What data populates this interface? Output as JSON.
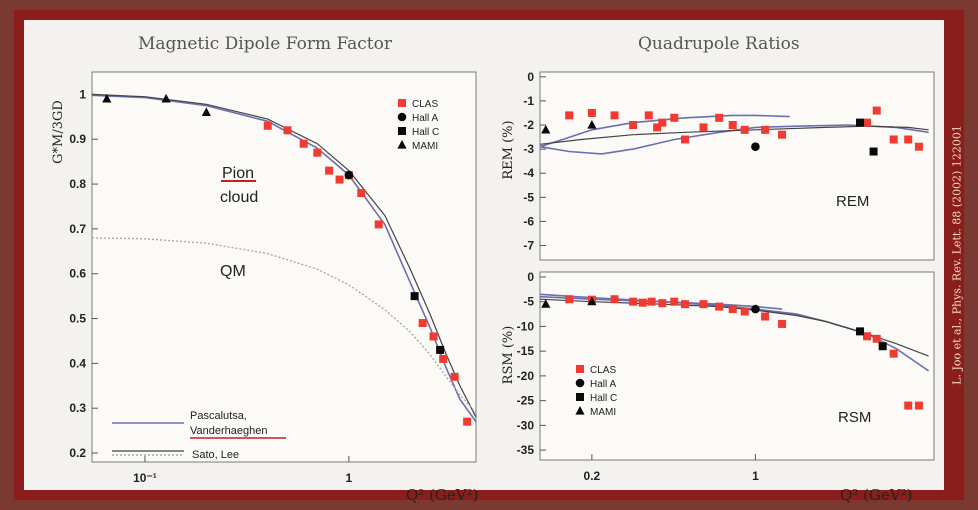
{
  "credit": "L. Joo et al., Phys. Rev. Lett. 88 (2002) 122001",
  "colors": {
    "clas": "#f03a32",
    "pv": "#6a6fb0",
    "sato": "#444444",
    "qm": "#a9a9a9",
    "red_line": "#c42020"
  },
  "chart_data": [
    {
      "type": "scatter",
      "title": "Magnetic Dipole Form Factor",
      "ylabel": "G*M/3GD",
      "xlabel": "Q² (GeV²)",
      "xscale": "log",
      "xlim": [
        0.055,
        4.2
      ],
      "ylim": [
        0.18,
        1.05
      ],
      "x_ticks": [
        {
          "v": 0.1,
          "label": "10⁻¹"
        },
        {
          "v": 1,
          "label": "1"
        }
      ],
      "y_ticks": [
        0.2,
        0.3,
        0.4,
        0.5,
        0.6,
        0.7,
        0.8,
        0.9,
        1
      ],
      "legend": [
        "CLAS",
        "Hall A",
        "Hall C",
        "MAMI"
      ],
      "series": [
        {
          "name": "CLAS",
          "marker": "square",
          "points": [
            [
              0.4,
              0.93
            ],
            [
              0.5,
              0.92
            ],
            [
              0.6,
              0.89
            ],
            [
              0.7,
              0.87
            ],
            [
              0.8,
              0.83
            ],
            [
              0.9,
              0.81
            ],
            [
              1.0,
              0.82
            ],
            [
              1.15,
              0.78
            ],
            [
              1.4,
              0.71
            ],
            [
              2.3,
              0.49
            ],
            [
              2.6,
              0.46
            ],
            [
              2.9,
              0.41
            ],
            [
              3.3,
              0.37
            ],
            [
              3.8,
              0.27
            ]
          ]
        },
        {
          "name": "Hall A",
          "marker": "circle",
          "points": [
            [
              1.0,
              0.82
            ]
          ]
        },
        {
          "name": "Hall C",
          "marker": "square",
          "points": [
            [
              2.1,
              0.55
            ],
            [
              2.8,
              0.43
            ]
          ]
        },
        {
          "name": "MAMI",
          "marker": "triangle",
          "points": [
            [
              0.065,
              0.99
            ],
            [
              0.127,
              0.99
            ],
            [
              0.2,
              0.96
            ]
          ]
        }
      ],
      "curves": [
        {
          "name": "Pascalutsa, Vanderhaeghen",
          "style": "pv",
          "points": [
            [
              0.055,
              0.998
            ],
            [
              0.1,
              0.993
            ],
            [
              0.2,
              0.975
            ],
            [
              0.4,
              0.94
            ],
            [
              0.7,
              0.88
            ],
            [
              1.0,
              0.82
            ],
            [
              1.5,
              0.71
            ],
            [
              2.0,
              0.58
            ],
            [
              2.5,
              0.48
            ],
            [
              3.0,
              0.39
            ],
            [
              3.5,
              0.32
            ],
            [
              4.2,
              0.27
            ]
          ]
        },
        {
          "name": "Sato, Lee",
          "style": "sato",
          "points": [
            [
              0.055,
              1.0
            ],
            [
              0.1,
              0.995
            ],
            [
              0.2,
              0.978
            ],
            [
              0.4,
              0.945
            ],
            [
              0.7,
              0.89
            ],
            [
              1.0,
              0.83
            ],
            [
              1.5,
              0.73
            ],
            [
              2.0,
              0.61
            ],
            [
              2.5,
              0.51
            ],
            [
              3.0,
              0.42
            ],
            [
              3.5,
              0.35
            ],
            [
              4.2,
              0.28
            ]
          ]
        },
        {
          "name": "QM",
          "style": "qm",
          "points": [
            [
              0.055,
              0.68
            ],
            [
              0.1,
              0.678
            ],
            [
              0.2,
              0.668
            ],
            [
              0.4,
              0.645
            ],
            [
              0.7,
              0.61
            ],
            [
              1.0,
              0.575
            ],
            [
              1.5,
              0.52
            ],
            [
              2.0,
              0.47
            ],
            [
              2.5,
              0.42
            ],
            [
              3.0,
              0.37
            ],
            [
              3.5,
              0.33
            ],
            [
              4.2,
              0.29
            ]
          ]
        }
      ],
      "annotations": {
        "pion_line1": "Pion",
        "pion_line2": "cloud",
        "qm": "QM",
        "pv_line1": "Pascalutsa,",
        "pv_line2": "Vanderhaeghen",
        "sato": "Sato, Lee"
      }
    },
    {
      "type": "scatter",
      "title": "Quadrupole Ratios",
      "ylabel": "REM (%)",
      "xscale": "log",
      "xlim": [
        0.12,
        5.8
      ],
      "ylim": [
        -7.6,
        0.2
      ],
      "y_ticks": [
        0,
        -1,
        -2,
        -3,
        -4,
        -5,
        -6,
        -7
      ],
      "panel_label": "REM",
      "series": [
        {
          "name": "CLAS",
          "marker": "square",
          "points": [
            [
              0.16,
              -1.6
            ],
            [
              0.2,
              -1.5
            ],
            [
              0.25,
              -1.6
            ],
            [
              0.3,
              -2.0
            ],
            [
              0.35,
              -1.6
            ],
            [
              0.38,
              -2.1
            ],
            [
              0.4,
              -1.9
            ],
            [
              0.45,
              -1.7
            ],
            [
              0.5,
              -2.6
            ],
            [
              0.6,
              -2.1
            ],
            [
              0.7,
              -1.7
            ],
            [
              0.8,
              -2.0
            ],
            [
              0.9,
              -2.2
            ],
            [
              1.1,
              -2.2
            ],
            [
              1.3,
              -2.4
            ],
            [
              3.0,
              -1.9
            ],
            [
              3.3,
              -1.4
            ],
            [
              3.9,
              -2.6
            ],
            [
              4.5,
              -2.6
            ],
            [
              5.0,
              -2.9
            ]
          ]
        },
        {
          "name": "Hall A",
          "marker": "circle",
          "points": [
            [
              1.0,
              -2.9
            ]
          ]
        },
        {
          "name": "Hall C",
          "marker": "square",
          "points": [
            [
              2.8,
              -1.9
            ],
            [
              3.2,
              -3.1
            ]
          ]
        },
        {
          "name": "MAMI",
          "marker": "triangle",
          "points": [
            [
              0.127,
              -2.2
            ],
            [
              0.2,
              -2.0
            ]
          ]
        }
      ],
      "curves": [
        {
          "name": "Pascalutsa, Vanderhaeghen",
          "style": "pv",
          "points": [
            [
              0.12,
              -2.9
            ],
            [
              0.15,
              -2.6
            ],
            [
              0.2,
              -2.2
            ],
            [
              0.3,
              -1.9
            ],
            [
              0.5,
              -1.7
            ],
            [
              0.8,
              -1.6
            ],
            [
              1.0,
              -1.6
            ],
            [
              1.4,
              -1.65
            ]
          ]
        },
        {
          "name": "Sato, Lee",
          "style": "pv",
          "points": [
            [
              0.12,
              -2.9
            ],
            [
              0.16,
              -3.1
            ],
            [
              0.22,
              -3.2
            ],
            [
              0.3,
              -3.0
            ],
            [
              0.45,
              -2.6
            ],
            [
              0.7,
              -2.3
            ],
            [
              1.0,
              -2.1
            ],
            [
              1.5,
              -2.05
            ],
            [
              2.5,
              -2.0
            ],
            [
              4.0,
              -2.1
            ],
            [
              5.5,
              -2.3
            ]
          ]
        },
        {
          "name": "Sato, Lee",
          "style": "sato",
          "points": [
            [
              0.12,
              -2.8
            ],
            [
              0.18,
              -2.6
            ],
            [
              0.3,
              -2.4
            ],
            [
              0.5,
              -2.3
            ],
            [
              1.0,
              -2.2
            ],
            [
              2.0,
              -2.1
            ],
            [
              3.0,
              -2.05
            ],
            [
              4.5,
              -2.1
            ],
            [
              5.5,
              -2.2
            ]
          ]
        }
      ]
    },
    {
      "type": "scatter",
      "ylabel": "RSM (%)",
      "xlabel": "Q² (GeV²)",
      "xscale": "log",
      "xlim": [
        0.12,
        5.8
      ],
      "ylim": [
        -37,
        1
      ],
      "x_ticks": [
        {
          "v": 0.2,
          "label": "0.2"
        },
        {
          "v": 1,
          "label": "1"
        }
      ],
      "y_ticks": [
        0,
        -5,
        -10,
        -15,
        -20,
        -25,
        -30,
        -35
      ],
      "panel_label": "RSM",
      "legend": [
        "CLAS",
        "Hall A",
        "Hall C",
        "MAMI"
      ],
      "series": [
        {
          "name": "CLAS",
          "marker": "square",
          "points": [
            [
              0.16,
              -4.5
            ],
            [
              0.2,
              -4.6
            ],
            [
              0.25,
              -4.5
            ],
            [
              0.3,
              -5.0
            ],
            [
              0.33,
              -5.2
            ],
            [
              0.36,
              -5.0
            ],
            [
              0.4,
              -5.3
            ],
            [
              0.45,
              -5.0
            ],
            [
              0.5,
              -5.5
            ],
            [
              0.6,
              -5.5
            ],
            [
              0.7,
              -6.0
            ],
            [
              0.8,
              -6.5
            ],
            [
              0.9,
              -7.0
            ],
            [
              1.1,
              -8.0
            ],
            [
              1.3,
              -9.5
            ],
            [
              3.0,
              -12.0
            ],
            [
              3.3,
              -12.5
            ],
            [
              3.9,
              -15.5
            ],
            [
              4.5,
              -26.0
            ],
            [
              5.0,
              -26.0
            ]
          ]
        },
        {
          "name": "Hall A",
          "marker": "circle",
          "points": [
            [
              1.0,
              -6.5
            ]
          ]
        },
        {
          "name": "Hall C",
          "marker": "square",
          "points": [
            [
              2.8,
              -11.0
            ],
            [
              3.5,
              -14.0
            ]
          ]
        },
        {
          "name": "MAMI",
          "marker": "triangle",
          "points": [
            [
              0.127,
              -5.5
            ],
            [
              0.2,
              -5.0
            ]
          ]
        }
      ],
      "curves": [
        {
          "name": "Pascalutsa, Vanderhaeghen",
          "style": "pv",
          "points": [
            [
              0.12,
              -4.0
            ],
            [
              0.2,
              -4.5
            ],
            [
              0.4,
              -5.0
            ],
            [
              0.7,
              -5.5
            ],
            [
              1.0,
              -6.0
            ],
            [
              1.3,
              -6.5
            ]
          ]
        },
        {
          "name": "Sato, Lee",
          "style": "pv",
          "points": [
            [
              0.12,
              -3.5
            ],
            [
              0.2,
              -4.2
            ],
            [
              0.4,
              -5.0
            ],
            [
              0.7,
              -5.8
            ],
            [
              1.0,
              -6.5
            ],
            [
              1.5,
              -7.5
            ],
            [
              2.0,
              -9.0
            ],
            [
              3.0,
              -11.5
            ],
            [
              4.0,
              -14.5
            ],
            [
              5.5,
              -19.0
            ]
          ]
        },
        {
          "name": "Sato, Lee",
          "style": "sato",
          "points": [
            [
              0.12,
              -4.5
            ],
            [
              0.2,
              -5.0
            ],
            [
              0.4,
              -5.5
            ],
            [
              0.7,
              -6.0
            ],
            [
              1.0,
              -6.7
            ],
            [
              1.5,
              -7.8
            ],
            [
              2.0,
              -9.0
            ],
            [
              3.0,
              -11.5
            ],
            [
              4.0,
              -13.5
            ],
            [
              5.5,
              -16.0
            ]
          ]
        }
      ]
    }
  ]
}
